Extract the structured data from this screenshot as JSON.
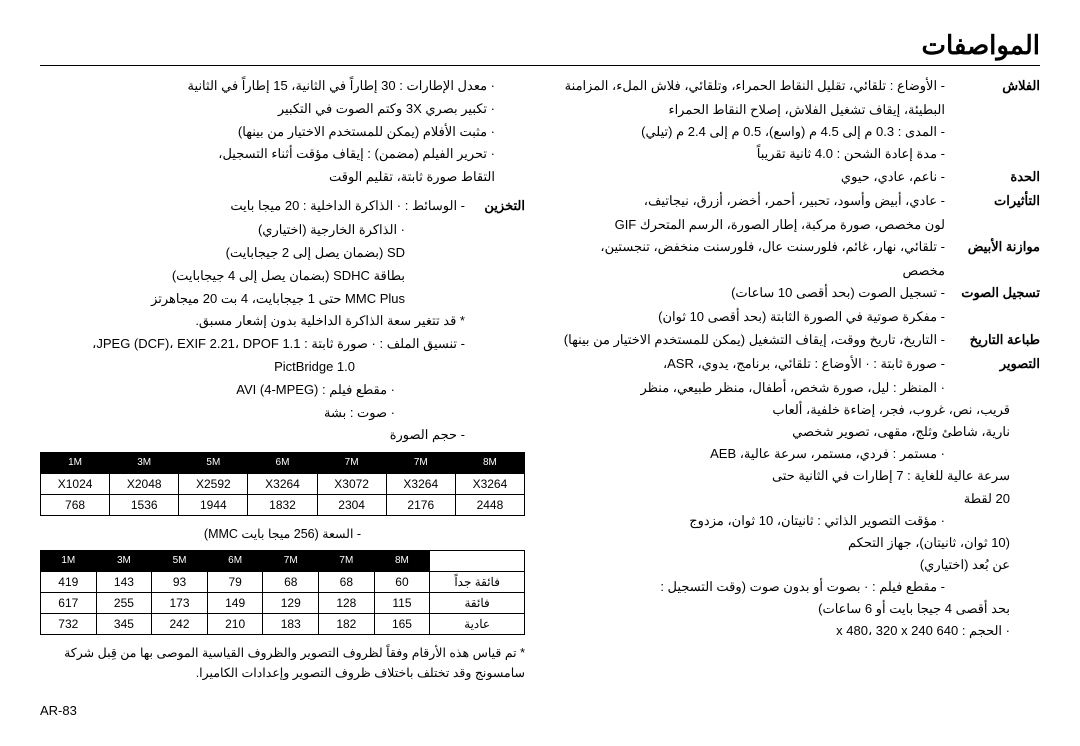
{
  "title": "المواصفات",
  "pageNumber": "AR-83",
  "right": {
    "flash": {
      "label": "الفلاش",
      "modes": "- الأوضاع : تلقائي، تقليل النقاط الحمراء، وتلقائي، فلاش الملء، المزامنة",
      "l2": "البطيئة، إيقاف تشغيل الفلاش، إصلاح النقاط الحمراء",
      "range": "- المدى : 0.3 م إلى 4.5 م (واسع)، 0.5 م إلى 2.4 م (تيلي)",
      "recharge": "- مدة إعادة الشحن : 4.0 ثانية تقريباً"
    },
    "sharpness": {
      "label": "الحدة",
      "val": "- ناعم، عادي، حيوي"
    },
    "effects": {
      "label": "التأثيرات",
      "l1": "- عادي، أبيض وأسود، تحبير، أحمر، أخضر، أزرق، نيجاتيف،",
      "l2": "لون مخصص، صورة مركبة، إطار الصورة، الرسم المتحرك GIF"
    },
    "wb": {
      "label": "موازنة الأبيض",
      "l1": "- تلقائي، نهار، غائم، فلورسنت عال، فلورسنت منخفض، تنجستين،",
      "l2": "مخصص"
    },
    "voice": {
      "label": "تسجيل الصوت",
      "l1": "- تسجيل الصوت (بحد أقصى 10 ساعات)",
      "l2": "- مفكرة صوتية في الصورة الثابتة (بحد أقصى 10 ثوان)"
    },
    "date": {
      "label": "طباعة التاريخ",
      "l1": "- التاريخ، تاريخ ووقت، إيقاف التشغيل (يمكن للمستخدم الاختيار من بينها)"
    },
    "shooting": {
      "label": "التصوير",
      "l1": "- صورة ثابتة : · الأوضاع : تلقائي، برنامج، يدوي، ASR،",
      "l2": "· المنظر : ليل، صورة شخص، أطفال، منظر طبيعي، منظر",
      "l3": "قريب، نص، غروب، فجر، إضاءة خلفية، ألعاب",
      "l4": "نارية، شاطئ وثلج، مقهى، تصوير شخصي",
      "l5": "· مستمر : فردي، مستمر، سرعة عالية، AEB",
      "l6": "سرعة عالية للغاية : 7 إطارات في الثانية حتى",
      "l7": "20 لقطة",
      "l8": "· مؤقت التصوير الذاتي : ثانيتان، 10 ثوان، مزدوج",
      "l9": "(10 ثوان، ثانيتان)، جهاز التحكم",
      "l10": "عن بُعد (اختياري)",
      "l11": "- مقطع فيلم     : · بصوت أو بدون صوت (وقت التسجيل :",
      "l12": "بحد أقصى 4 جيجا بايت أو 6 ساعات)",
      "l13": "· الحجم : 640 x 480، 320 x 240"
    }
  },
  "left": {
    "frameRate": "· معدل الإطارات : 30 إطاراً في الثانية، 15 إطاراً في الثانية",
    "zoom": "· تكبير بصري 3X وكتم الصوت في التكبير",
    "stabilizer": "· مثبت الأفلام (يمكن للمستخدم الاختيار من بينها)",
    "edit": "· تحرير الفيلم (مضمن) : إيقاف مؤقت أثناء التسجيل،",
    "edit2": "التقاط صورة ثابتة، تقليم الوقت",
    "storage": {
      "label": "التخزين",
      "l1": "- الوسائط : · الذاكرة الداخلية : 20 ميجا بايت",
      "l2": "· الذاكرة الخارجية (اختياري)",
      "l3": "SD (بضمان يصل إلى 2 جيجابايت)",
      "l4": "بطاقة SDHC (بضمان يصل إلى 4 جيجابايت)",
      "l5": "MMC Plus حتى 1 جيجابايت، 4 بت 20 ميجاهرتز",
      "l6": "* قد تتغير سعة الذاكرة الداخلية بدون إشعار مسبق.",
      "l7": "- تنسيق الملف : · صورة ثابتة : JPEG (DCF)، EXIF 2.21، DPOF 1.1،",
      "l8": "PictBridge 1.0",
      "l9": "· مقطع فيلم : AVI (4-MPEG)",
      "l10": "· صوت : بشة",
      "imgSize": "- حجم الصورة"
    },
    "table1": {
      "headers": [
        "1M",
        "3M",
        "5M",
        "6M",
        "7M",
        "7M",
        "8M"
      ],
      "row1": [
        "X1024",
        "X2048",
        "X2592",
        "X3264",
        "X3072",
        "X3264",
        "X3264"
      ],
      "row2": [
        "768",
        "1536",
        "1944",
        "1832",
        "2304",
        "2176",
        "2448"
      ]
    },
    "capacity": "- السعة (256 ميجا بايت MMC)",
    "table2": {
      "headers": [
        "1M",
        "3M",
        "5M",
        "6M",
        "7M",
        "7M",
        "8M",
        ""
      ],
      "rows": [
        [
          "419",
          "143",
          "93",
          "79",
          "68",
          "68",
          "60",
          "فائقة جداً"
        ],
        [
          "617",
          "255",
          "173",
          "149",
          "129",
          "128",
          "115",
          "فائقة"
        ],
        [
          "732",
          "345",
          "242",
          "210",
          "183",
          "182",
          "165",
          "عادية"
        ]
      ]
    },
    "note": "* تم قياس هذه الأرقام وفقاً لظروف التصوير والظروف القياسية الموصى بها من قِبل شركة سامسونج وقد تختلف باختلاف ظروف التصوير وإعدادات الكاميرا."
  }
}
